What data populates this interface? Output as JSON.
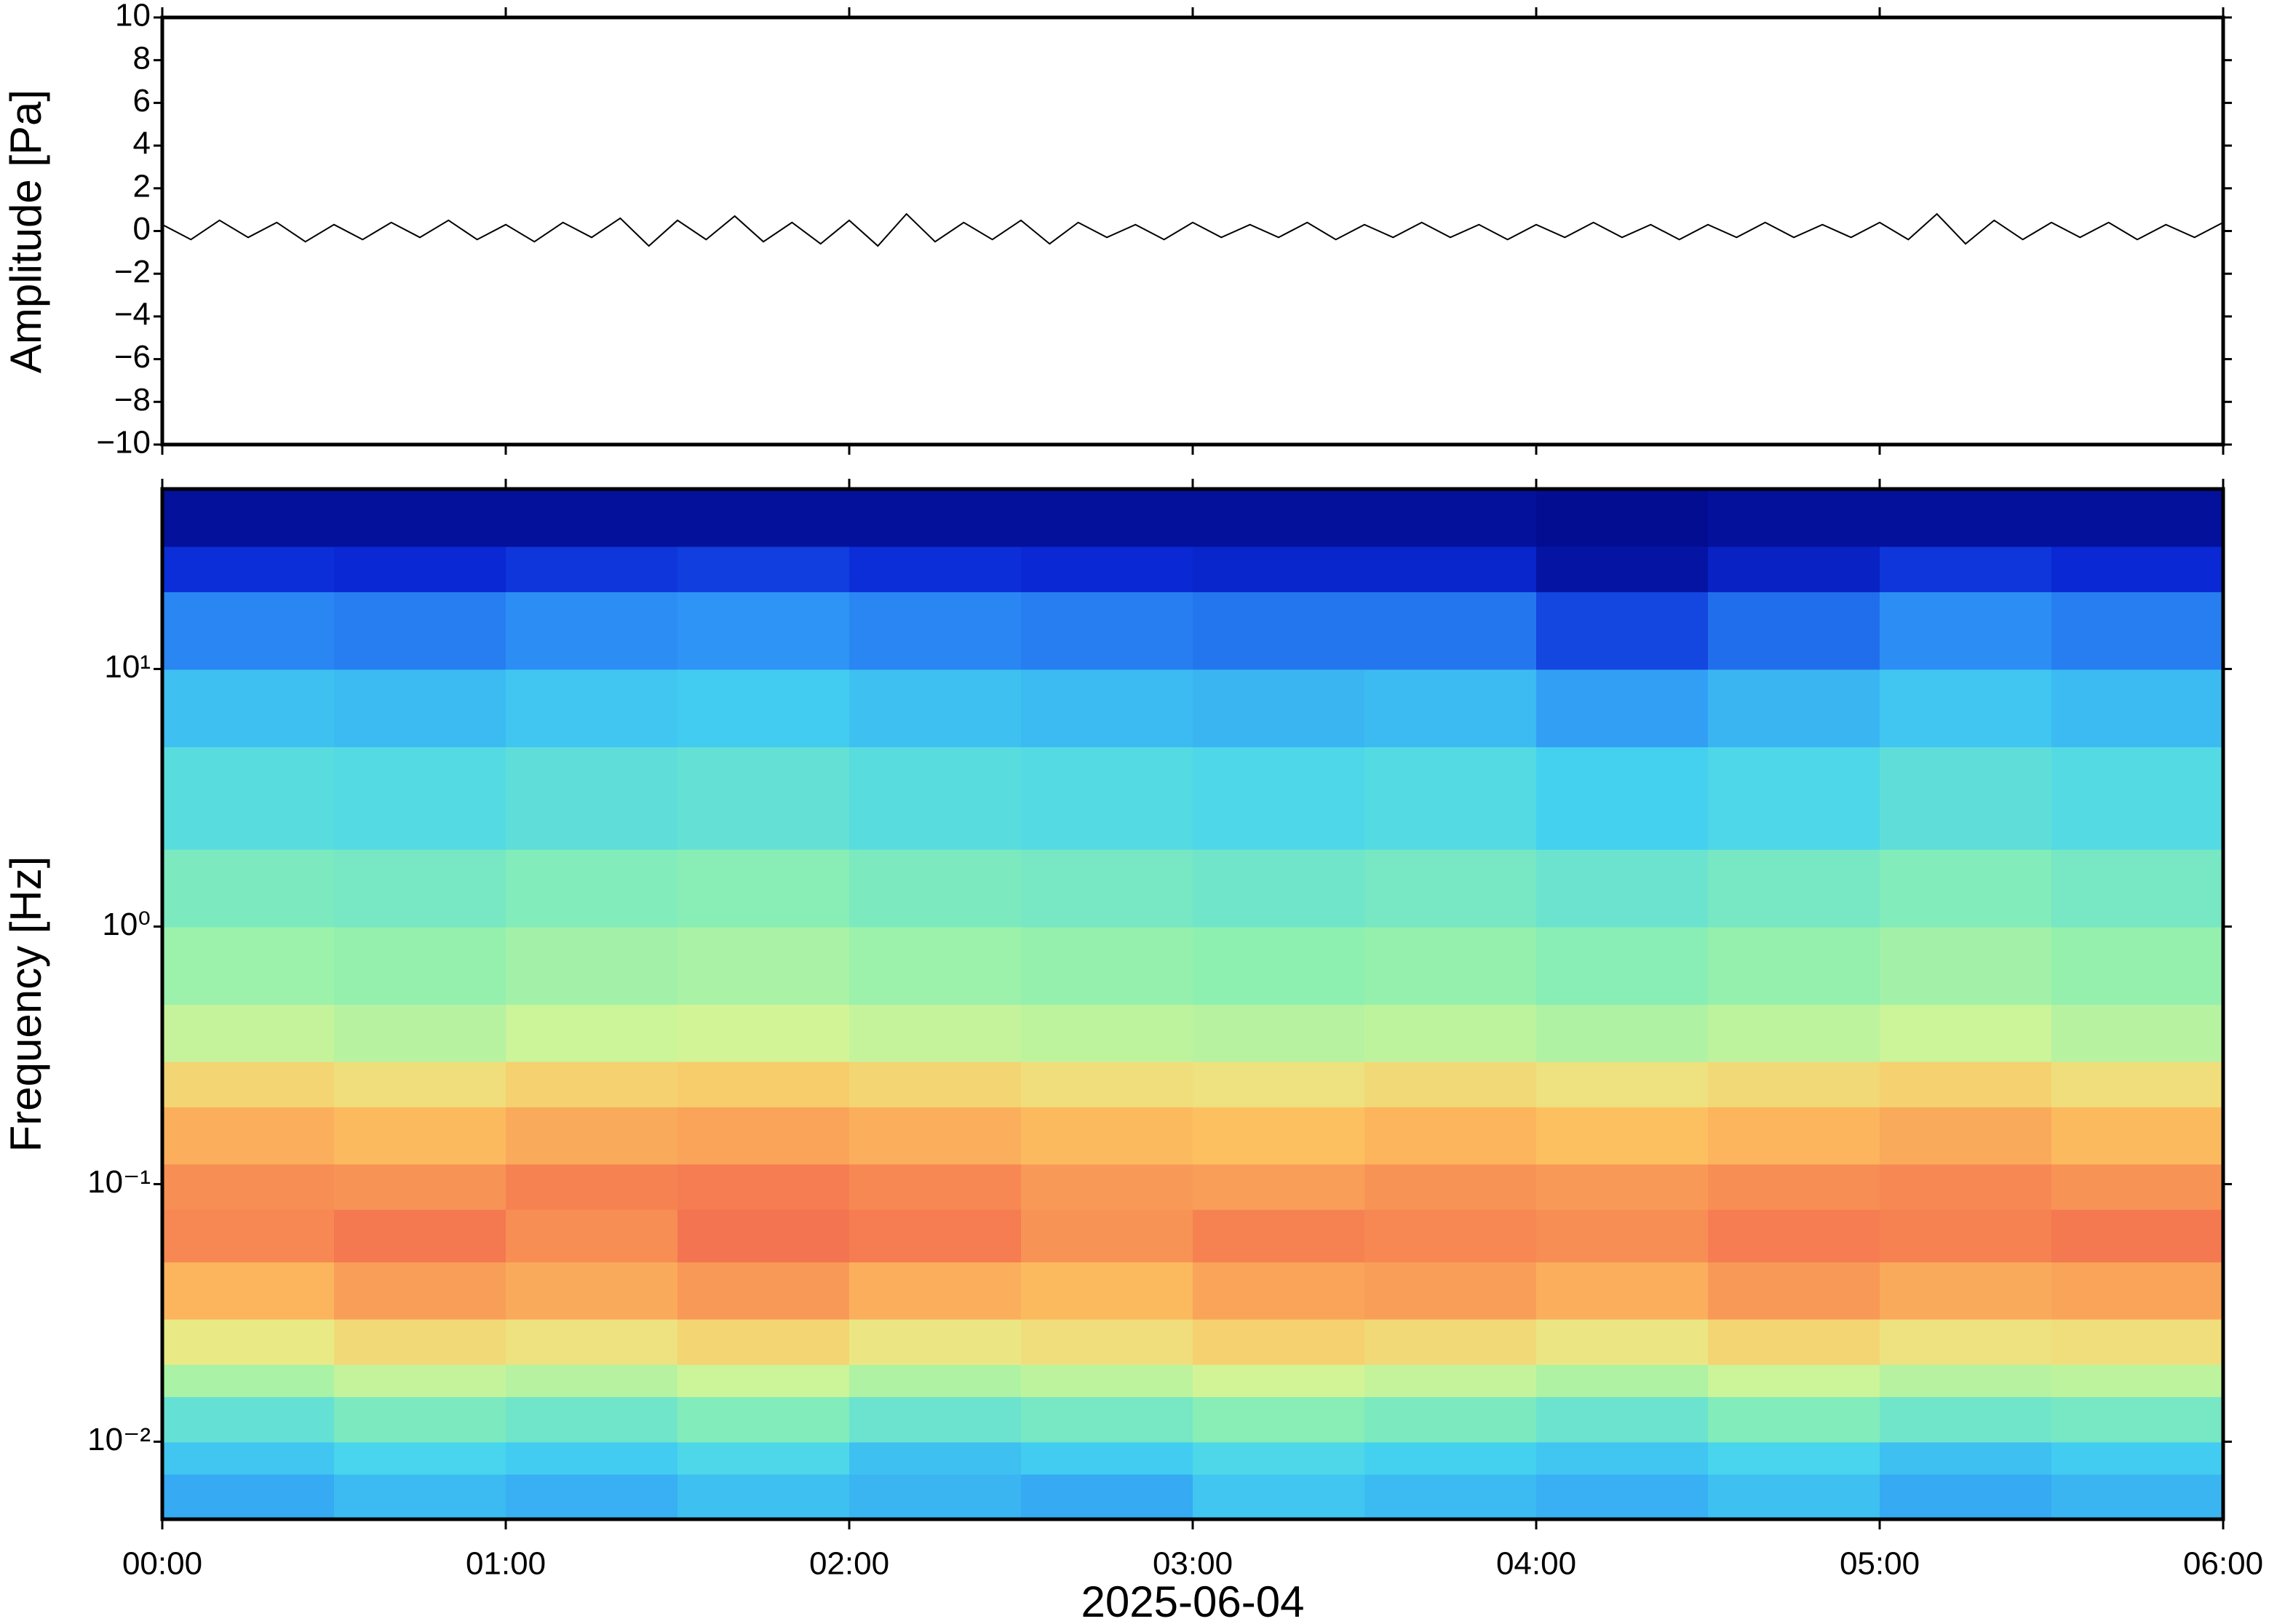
{
  "chart_data": [
    {
      "type": "line",
      "ylabel": "Amplitude [Pa]",
      "color": "#000000",
      "x": [
        0,
        5,
        10,
        15,
        20,
        25,
        30,
        35,
        40,
        45,
        50,
        55,
        60,
        65,
        70,
        75,
        80,
        85,
        90,
        95,
        100,
        105,
        110,
        115,
        120,
        125,
        130,
        135,
        140,
        145,
        150,
        155,
        160,
        165,
        170,
        175,
        180,
        185,
        190,
        195,
        200,
        205,
        210,
        215,
        220,
        225,
        230,
        235,
        240,
        245,
        250,
        255,
        260,
        265,
        270,
        275,
        280,
        285,
        290,
        295,
        300,
        305,
        310,
        315,
        320,
        325,
        330,
        335,
        340,
        345,
        350,
        355,
        360
      ],
      "values": [
        0.3,
        -0.4,
        0.5,
        -0.3,
        0.4,
        -0.5,
        0.3,
        -0.4,
        0.4,
        -0.3,
        0.5,
        -0.4,
        0.3,
        -0.5,
        0.4,
        -0.3,
        0.6,
        -0.7,
        0.5,
        -0.4,
        0.7,
        -0.5,
        0.4,
        -0.6,
        0.5,
        -0.7,
        0.8,
        -0.5,
        0.4,
        -0.4,
        0.5,
        -0.6,
        0.4,
        -0.3,
        0.3,
        -0.4,
        0.4,
        -0.3,
        0.3,
        -0.3,
        0.4,
        -0.4,
        0.3,
        -0.3,
        0.4,
        -0.3,
        0.3,
        -0.4,
        0.3,
        -0.3,
        0.4,
        -0.3,
        0.3,
        -0.4,
        0.3,
        -0.3,
        0.4,
        -0.3,
        0.3,
        -0.3,
        0.4,
        -0.4,
        0.8,
        -0.6,
        0.5,
        -0.4,
        0.4,
        -0.3,
        0.4,
        -0.4,
        0.3,
        -0.3,
        0.4
      ],
      "xlim": [
        0,
        360
      ],
      "xticks": [
        0,
        60,
        120,
        180,
        240,
        300,
        360
      ],
      "ylim": [
        -10,
        10
      ],
      "yticks": [
        {
          "value": -10,
          "label": "−10"
        },
        {
          "value": -8,
          "label": "−8"
        },
        {
          "value": -6,
          "label": "−6"
        },
        {
          "value": -4,
          "label": "−4"
        },
        {
          "value": -2,
          "label": "−2"
        },
        0,
        2,
        4,
        6,
        8,
        10
      ]
    },
    {
      "type": "heatmap",
      "ylabel": "Frequency [Hz]",
      "xlabel": "2025-06-04",
      "log_y": true,
      "x_bins": [
        0,
        30,
        60,
        90,
        120,
        150,
        180,
        210,
        240,
        270,
        300,
        330,
        360
      ],
      "y_bins": [
        0.005,
        0.0075,
        0.01,
        0.015,
        0.02,
        0.03,
        0.05,
        0.08,
        0.12,
        0.2,
        0.3,
        0.5,
        1,
        2,
        5,
        10,
        20,
        30,
        50
      ],
      "z": [
        [
          3.0,
          3.3,
          3.1,
          3.4,
          3.2,
          3.0,
          3.5,
          3.3,
          3.1,
          3.4,
          3.0,
          3.2
        ],
        [
          3.5,
          3.8,
          3.6,
          3.9,
          3.4,
          3.6,
          3.9,
          3.7,
          3.5,
          3.8,
          3.4,
          3.6
        ],
        [
          4.3,
          4.7,
          4.5,
          4.8,
          4.4,
          4.6,
          4.9,
          4.7,
          4.4,
          4.8,
          4.5,
          4.6
        ],
        [
          5.4,
          5.8,
          5.6,
          5.9,
          5.5,
          5.7,
          6.0,
          5.8,
          5.5,
          5.9,
          5.6,
          5.7
        ],
        [
          6.5,
          6.9,
          6.7,
          7.0,
          6.6,
          6.8,
          7.1,
          6.9,
          6.6,
          7.0,
          6.7,
          6.8
        ],
        [
          7.7,
          8.1,
          7.9,
          8.2,
          7.8,
          7.6,
          8.0,
          8.1,
          7.8,
          8.2,
          7.9,
          8.0
        ],
        [
          8.5,
          8.8,
          8.4,
          8.9,
          8.7,
          8.3,
          8.6,
          8.5,
          8.4,
          8.7,
          8.6,
          8.8
        ],
        [
          8.4,
          8.3,
          8.6,
          8.7,
          8.5,
          8.2,
          8.1,
          8.3,
          8.2,
          8.4,
          8.5,
          8.3
        ],
        [
          7.8,
          7.6,
          7.9,
          8.0,
          7.8,
          7.6,
          7.5,
          7.7,
          7.5,
          7.7,
          7.9,
          7.6
        ],
        [
          7.0,
          6.8,
          7.1,
          7.2,
          7.0,
          6.8,
          6.7,
          6.9,
          6.7,
          6.9,
          7.1,
          6.8
        ],
        [
          5.8,
          5.6,
          5.9,
          6.0,
          5.8,
          5.7,
          5.6,
          5.7,
          5.5,
          5.7,
          5.9,
          5.6
        ],
        [
          5.2,
          5.1,
          5.3,
          5.4,
          5.2,
          5.1,
          5.0,
          5.1,
          4.9,
          5.1,
          5.3,
          5.1
        ],
        [
          4.7,
          4.6,
          4.8,
          4.9,
          4.7,
          4.6,
          4.5,
          4.6,
          4.4,
          4.6,
          4.8,
          4.6
        ],
        [
          4.1,
          4.0,
          4.2,
          4.3,
          4.1,
          4.0,
          3.9,
          4.0,
          3.7,
          3.9,
          4.2,
          4.0
        ],
        [
          3.4,
          3.3,
          3.5,
          3.6,
          3.4,
          3.3,
          3.2,
          3.3,
          2.8,
          3.2,
          3.5,
          3.3
        ],
        [
          2.4,
          2.3,
          2.5,
          2.6,
          2.4,
          2.3,
          2.2,
          2.2,
          1.6,
          2.1,
          2.5,
          2.3
        ],
        [
          1.3,
          1.2,
          1.4,
          1.5,
          1.3,
          1.2,
          1.1,
          1.1,
          0.6,
          1.0,
          1.4,
          1.2
        ],
        [
          0.5,
          0.5,
          0.5,
          0.5,
          0.5,
          0.5,
          0.5,
          0.5,
          0.4,
          0.5,
          0.5,
          0.5
        ]
      ],
      "zlim": [
        0,
        10
      ],
      "colormap": [
        "#000070",
        "#0a2ad8",
        "#2c8ef5",
        "#45d4f0",
        "#8ef0b0",
        "#e4f590",
        "#fdc060",
        "#f57a50",
        "#e84850"
      ],
      "xlim": [
        0,
        360
      ],
      "xticks": [
        {
          "value": 0,
          "label": "00:00"
        },
        {
          "value": 60,
          "label": "01:00"
        },
        {
          "value": 120,
          "label": "02:00"
        },
        {
          "value": 180,
          "label": "03:00"
        },
        {
          "value": 240,
          "label": "04:00"
        },
        {
          "value": 300,
          "label": "05:00"
        },
        {
          "value": 360,
          "label": "06:00"
        }
      ],
      "ylim": [
        0.005,
        50
      ],
      "yticks": [
        {
          "value": 0.01,
          "label": "10⁻²"
        },
        {
          "value": 0.1,
          "label": "10⁻¹"
        },
        {
          "value": 1,
          "label": "10⁰"
        },
        {
          "value": 10,
          "label": "10¹"
        }
      ]
    }
  ]
}
